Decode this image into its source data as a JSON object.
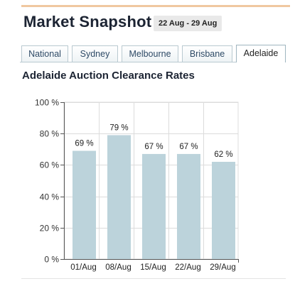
{
  "header": {
    "title": "Market Snapshot",
    "date_range": "22 Aug - 29 Aug"
  },
  "tabs": [
    {
      "label": "National",
      "active": false
    },
    {
      "label": "Sydney",
      "active": false
    },
    {
      "label": "Melbourne",
      "active": false
    },
    {
      "label": "Brisbane",
      "active": false
    },
    {
      "label": "Adelaide",
      "active": true
    }
  ],
  "section": {
    "title": "Adelaide Auction Clearance Rates"
  },
  "colors": {
    "bar": "#bcd3db",
    "grid": "#dcdcdc",
    "axis": "#555555",
    "accent_rule": "#f0c8a0"
  },
  "chart_data": {
    "type": "bar",
    "categories": [
      "01/Aug",
      "08/Aug",
      "15/Aug",
      "22/Aug",
      "29/Aug"
    ],
    "values": [
      69,
      79,
      67,
      67,
      62
    ],
    "data_labels": [
      "69 %",
      "79 %",
      "67 %",
      "67 %",
      "62 %"
    ],
    "yticks": [
      0,
      20,
      40,
      60,
      80,
      100
    ],
    "ytick_labels": [
      "0 %",
      "20 %",
      "40 %",
      "60 %",
      "80 %",
      "100 %"
    ],
    "ylim": [
      0,
      100
    ],
    "grid": true,
    "title": "",
    "xlabel": "",
    "ylabel": ""
  }
}
